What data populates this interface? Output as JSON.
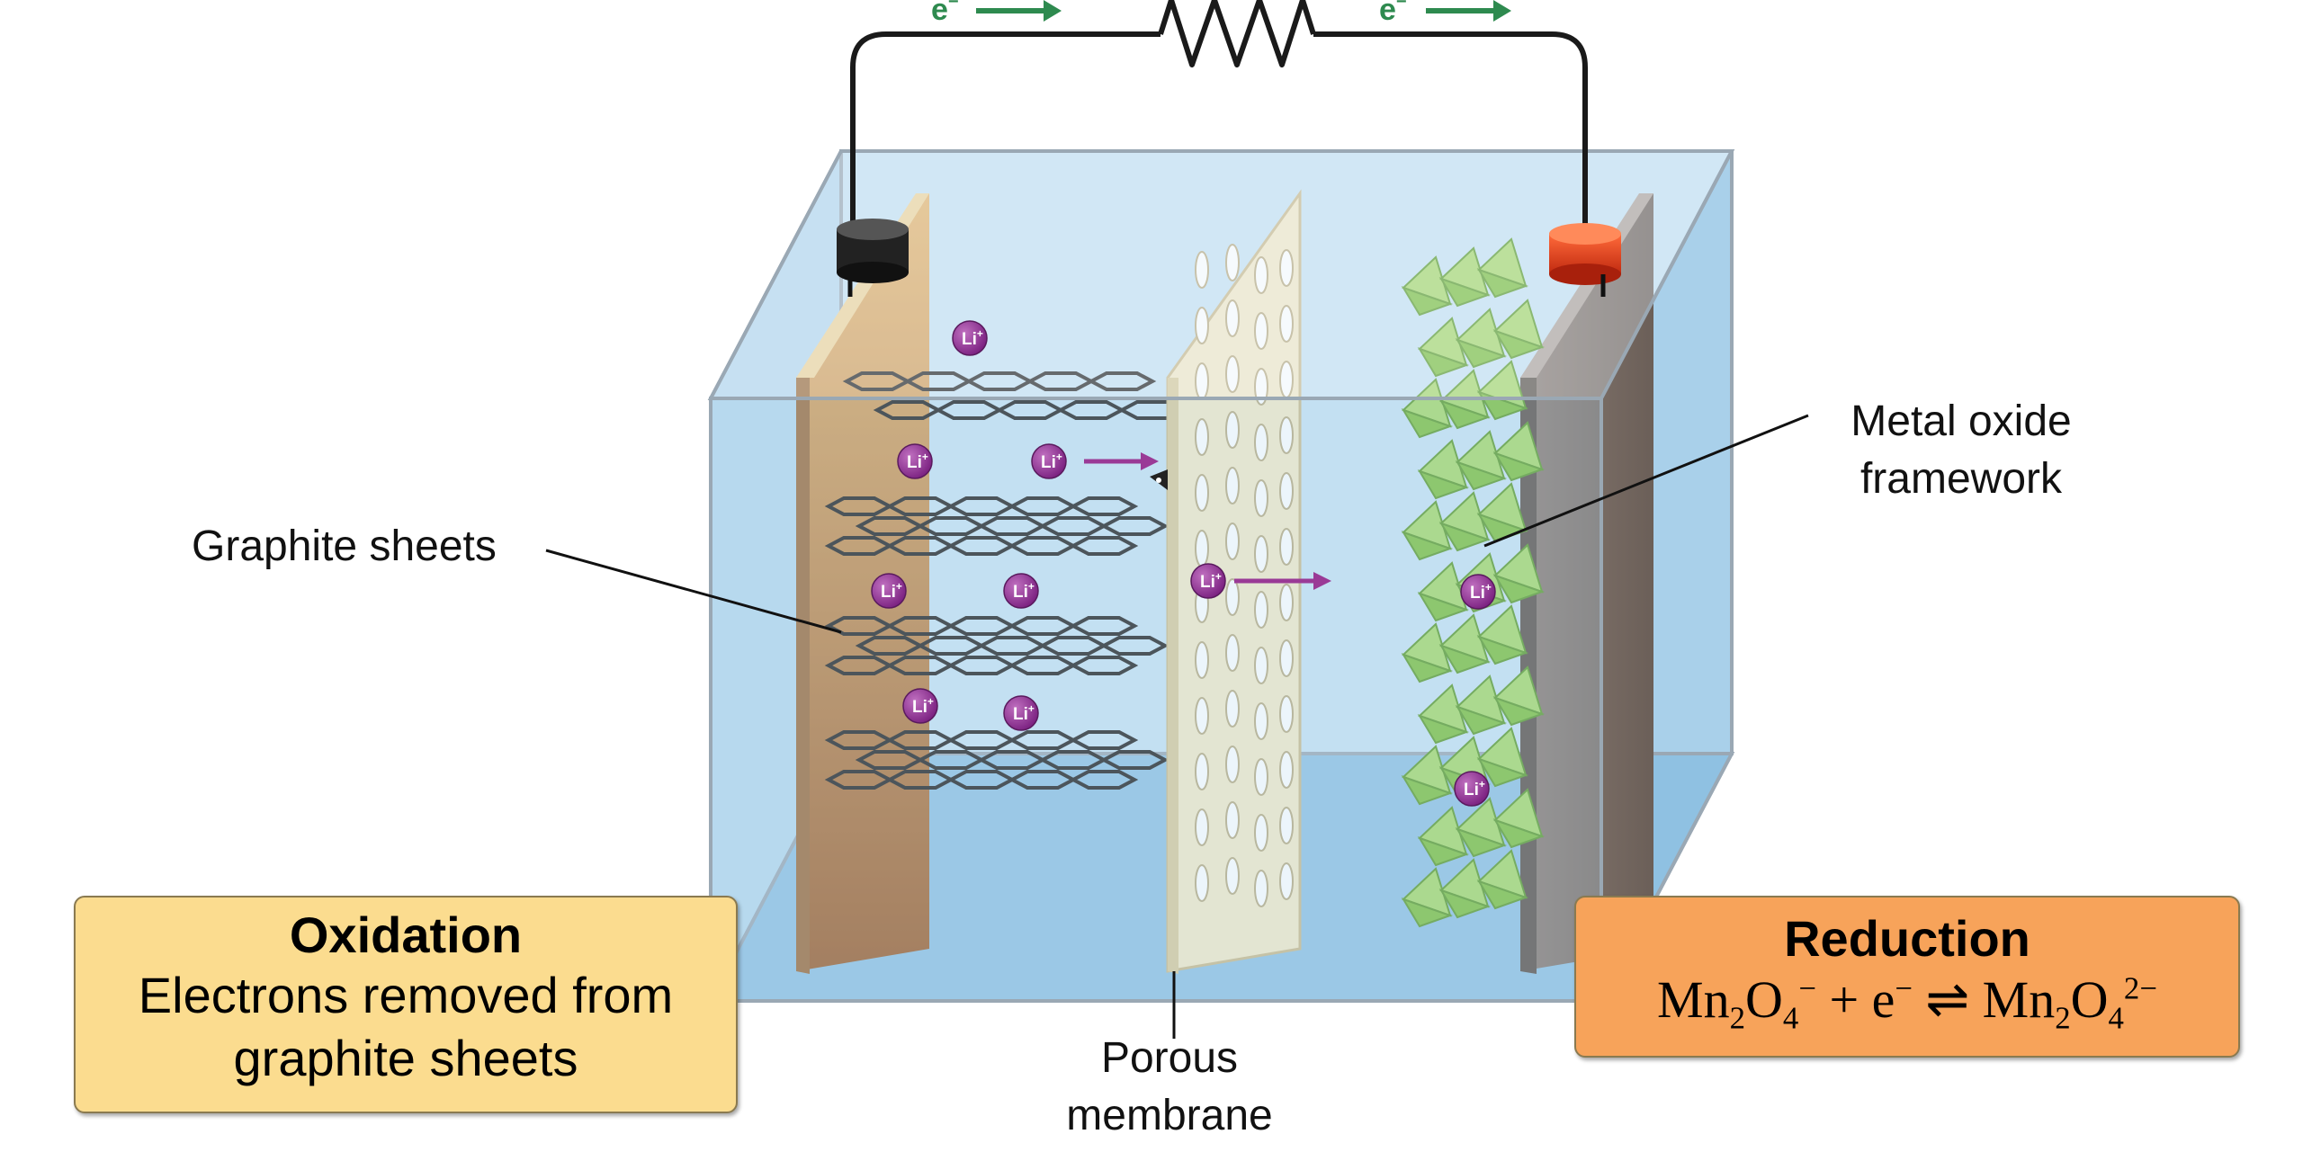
{
  "labels": {
    "graphite": "Graphite sheets",
    "metal_oxide_line1": "Metal oxide",
    "metal_oxide_line2": "framework",
    "porous_line1": "Porous",
    "porous_line2": "membrane",
    "electron": "e",
    "electron_superscript": "−",
    "lithium_ion": "Li",
    "lithium_superscript": "+"
  },
  "oxidation": {
    "title": "Oxidation",
    "line1": "Electrons removed from",
    "line2": "graphite sheets"
  },
  "reduction": {
    "title": "Reduction",
    "equation": {
      "lhs_a": "Mn",
      "lhs_a_sub": "2",
      "lhs_b": "O",
      "lhs_b_sub": "4",
      "lhs_charge": "−",
      "plus": " + e",
      "e_charge": "−",
      "arrow": " ⇌ ",
      "rhs_a": "Mn",
      "rhs_a_sub": "2",
      "rhs_b": "O",
      "rhs_b_sub": "4",
      "rhs_charge": "2−"
    }
  },
  "colors": {
    "electrolyte": "#bfdcf0",
    "anode": "#b87a3e",
    "cathode": "#7d6f67",
    "membrane": "#f1e6c2",
    "metal_oxide": "#8fcb50",
    "ion": "#8a2f8f",
    "electron_arrow": "#2e8a4f",
    "ion_arrow": "#9a3a96",
    "oxidation_box": "#fbdc8f",
    "reduction_box": "#f7a35a"
  }
}
